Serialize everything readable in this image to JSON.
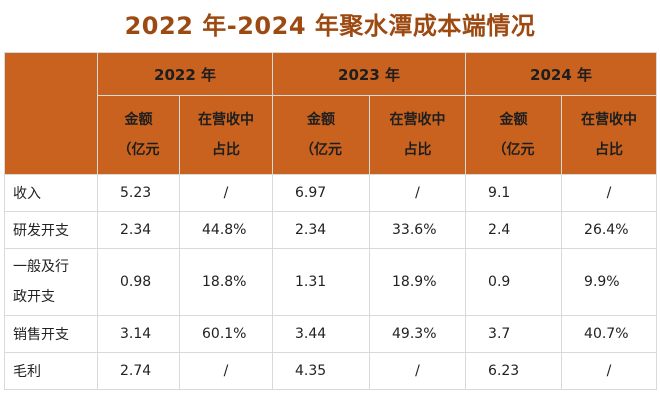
{
  "title": "2022 年-2024 年聚水潭成本端情况",
  "years": [
    "2022 年",
    "2023 年",
    "2024 年"
  ],
  "sub_headers": {
    "amount_line1": "金额",
    "amount_line2": "（亿元",
    "ratio_line1": "在营收中",
    "ratio_line2": "占比"
  },
  "rows": [
    {
      "label": [
        "收入"
      ],
      "cells": [
        "5.23",
        "/",
        "6.97",
        "/",
        "9.1",
        "/"
      ]
    },
    {
      "label": [
        "研发开支"
      ],
      "cells": [
        "2.34",
        "44.8%",
        "2.34",
        "33.6%",
        "2.4",
        "26.4%"
      ]
    },
    {
      "label": [
        "一般及行",
        "政开支"
      ],
      "cells": [
        "0.98",
        "18.8%",
        "1.31",
        "18.9%",
        "0.9",
        "9.9%"
      ]
    },
    {
      "label": [
        "销售开支"
      ],
      "cells": [
        "3.14",
        "60.1%",
        "3.44",
        "49.3%",
        "3.7",
        "40.7%"
      ]
    },
    {
      "label": [
        "毛利"
      ],
      "cells": [
        "2.74",
        "/",
        "4.35",
        "/",
        "6.23",
        "/"
      ]
    }
  ],
  "colors": {
    "header_bg": "#c9621f",
    "title": "#9c4a12",
    "grid": "#d9d9d9"
  }
}
